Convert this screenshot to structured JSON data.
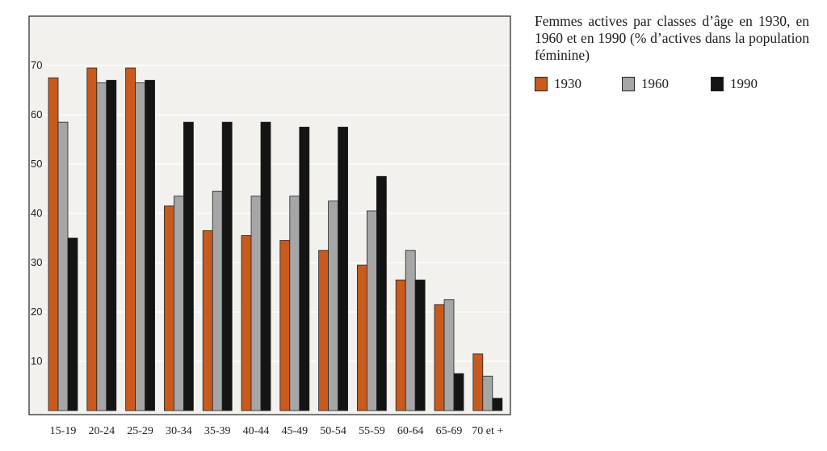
{
  "chart_data": {
    "type": "bar",
    "title": "Femmes actives par classes d’âge en 1930, en 1960 et en 1990 (% d’actives dans la population féminine)",
    "categories": [
      "15-19",
      "20-24",
      "25-29",
      "30-34",
      "35-39",
      "40-44",
      "45-49",
      "50-54",
      "55-59",
      "60-64",
      "65-69",
      "70 et +"
    ],
    "series": [
      {
        "name": "1930",
        "color": "#c85a1e",
        "values": [
          67.5,
          69.5,
          69.5,
          41.5,
          36.5,
          35.5,
          34.5,
          32.5,
          29.5,
          26.5,
          21.5,
          11.5
        ]
      },
      {
        "name": "1960",
        "color": "#a6a6a6",
        "values": [
          58.5,
          66.5,
          66.5,
          43.5,
          44.5,
          43.5,
          43.5,
          42.5,
          40.5,
          32.5,
          22.5,
          7.0
        ]
      },
      {
        "name": "1990",
        "color": "#141414",
        "values": [
          35.0,
          67.0,
          67.0,
          58.5,
          58.5,
          58.5,
          57.5,
          57.5,
          47.5,
          26.5,
          7.5,
          2.5
        ]
      }
    ],
    "yticks": [
      10,
      20,
      30,
      40,
      50,
      60,
      70
    ],
    "ylim": [
      0,
      80
    ],
    "xlabel": "",
    "ylabel": "",
    "grid": true,
    "legend_position": "top-right outside plot"
  }
}
